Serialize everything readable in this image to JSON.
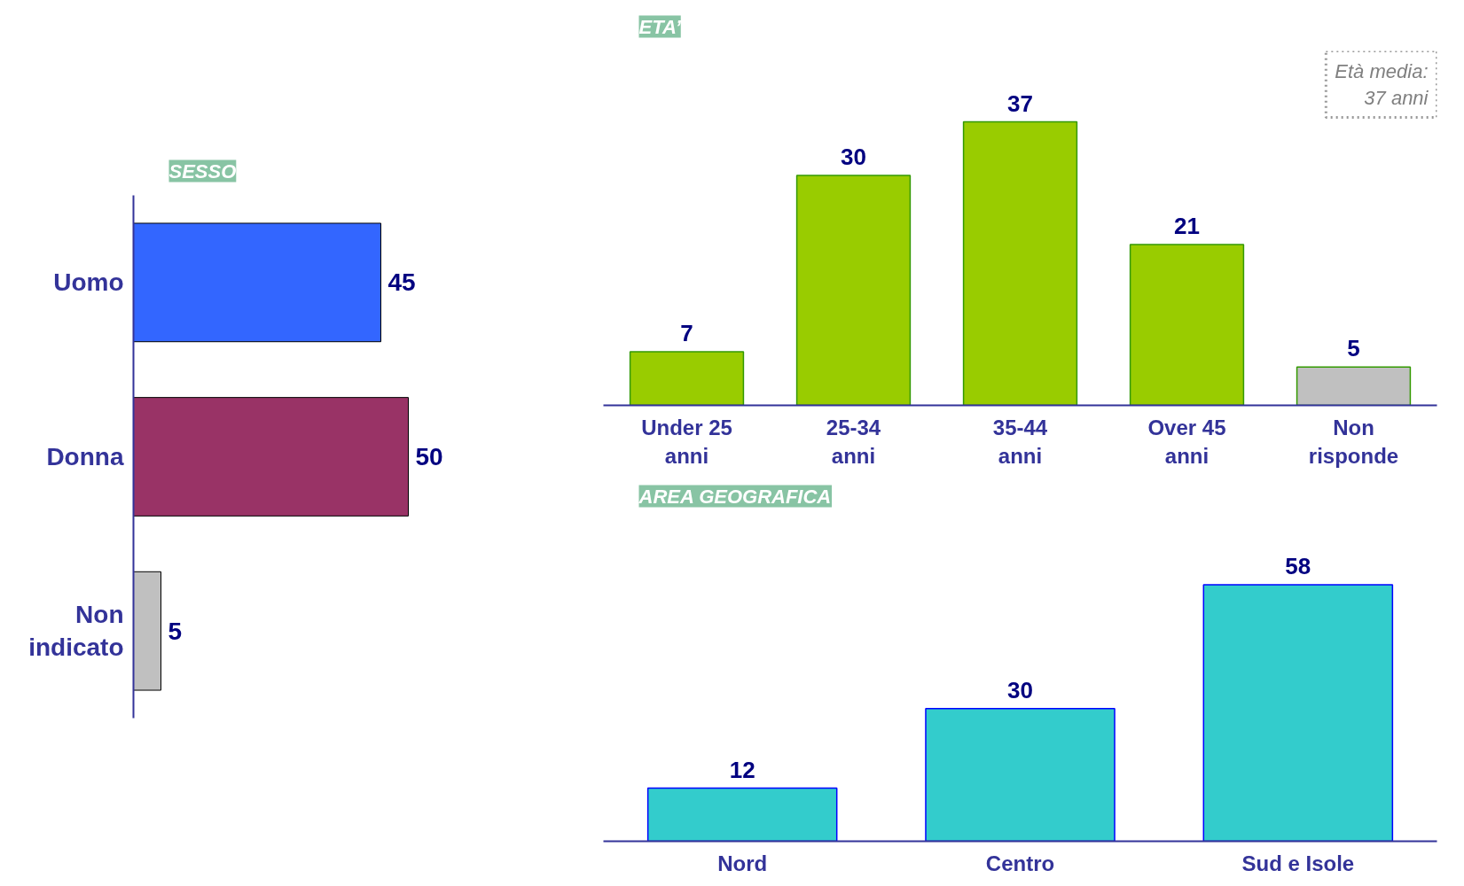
{
  "chart_data": [
    {
      "type": "bar",
      "orientation": "horizontal",
      "title": "SESSO",
      "categories": [
        "Uomo",
        "Donna",
        "Non\nindicato"
      ],
      "values": [
        45,
        50,
        5
      ],
      "colors": [
        "#3366ff",
        "#993366",
        "#c0c0c0"
      ],
      "data_labels": true
    },
    {
      "type": "bar",
      "title": "ETA’",
      "categories": [
        "Under 25\nanni",
        "25-34\nanni",
        "35-44\nanni",
        "Over 45\nanni",
        "Non\nrisponde"
      ],
      "values": [
        7,
        30,
        37,
        21,
        5
      ],
      "colors": [
        "#99cc00",
        "#99cc00",
        "#99cc00",
        "#99cc00",
        "#c0c0c0"
      ],
      "data_labels": true,
      "annotations": [
        "Età media:\n37 anni"
      ]
    },
    {
      "type": "bar",
      "title": "AREA GEOGRAFICA",
      "categories": [
        "Nord",
        "Centro",
        "Sud e Isole"
      ],
      "values": [
        12,
        30,
        58
      ],
      "colors": [
        "#33cccc",
        "#33cccc",
        "#33cccc"
      ],
      "data_labels": true
    }
  ]
}
